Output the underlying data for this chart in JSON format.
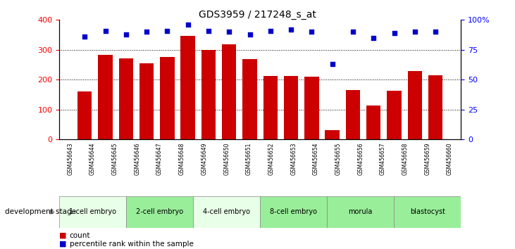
{
  "title": "GDS3959 / 217248_s_at",
  "samples": [
    "GSM456643",
    "GSM456644",
    "GSM456645",
    "GSM456646",
    "GSM456647",
    "GSM456648",
    "GSM456649",
    "GSM456650",
    "GSM456651",
    "GSM456652",
    "GSM456653",
    "GSM456654",
    "GSM456655",
    "GSM456656",
    "GSM456657",
    "GSM456658",
    "GSM456659",
    "GSM456660"
  ],
  "counts": [
    160,
    283,
    272,
    254,
    275,
    347,
    300,
    318,
    270,
    212,
    213,
    210,
    32,
    165,
    113,
    163,
    230,
    215
  ],
  "percentile_ranks": [
    86,
    91,
    88,
    90,
    91,
    96,
    91,
    90,
    88,
    91,
    92,
    90,
    63,
    90,
    85,
    89,
    90,
    90
  ],
  "stages": [
    {
      "label": "1-cell embryo",
      "start": 0,
      "end": 3
    },
    {
      "label": "2-cell embryo",
      "start": 3,
      "end": 6
    },
    {
      "label": "4-cell embryo",
      "start": 6,
      "end": 9
    },
    {
      "label": "8-cell embryo",
      "start": 9,
      "end": 12
    },
    {
      "label": "morula",
      "start": 12,
      "end": 15
    },
    {
      "label": "blastocyst",
      "start": 15,
      "end": 18
    }
  ],
  "stage_colors": [
    "#e8ffe8",
    "#99ee99",
    "#e8ffe8",
    "#99ee99",
    "#99ee99",
    "#99ee99"
  ],
  "bar_color": "#cc0000",
  "dot_color": "#0000cc",
  "ylim_left": [
    0,
    400
  ],
  "ylim_right": [
    0,
    100
  ],
  "sample_cell_bg": "#cccccc",
  "plot_bg": "#ffffff",
  "legend_count_label": "count",
  "legend_pct_label": "percentile rank within the sample"
}
